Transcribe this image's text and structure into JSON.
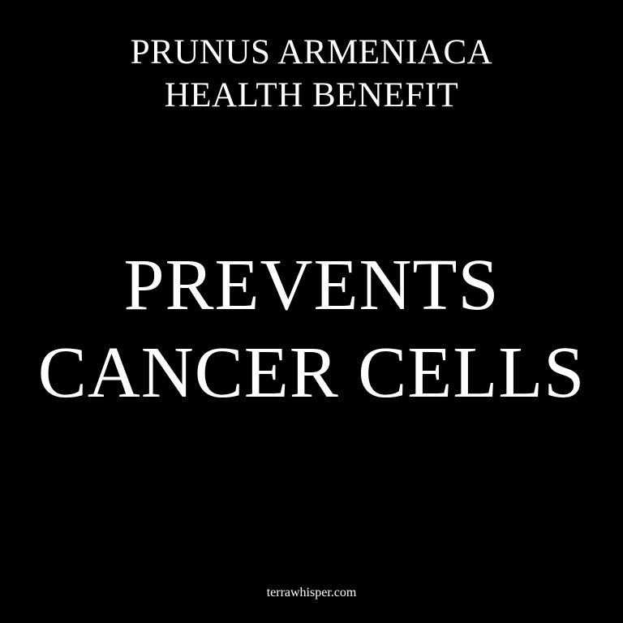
{
  "subtitle": {
    "line1": "PRUNUS ARMENIACA",
    "line2": "HEALTH BENEFIT"
  },
  "headline": {
    "line1": "PREVENTS",
    "line2": "CANCER CELLS"
  },
  "footer": {
    "site": "terrawhisper.com"
  },
  "colors": {
    "background": "#000000",
    "text": "#ffffff"
  }
}
